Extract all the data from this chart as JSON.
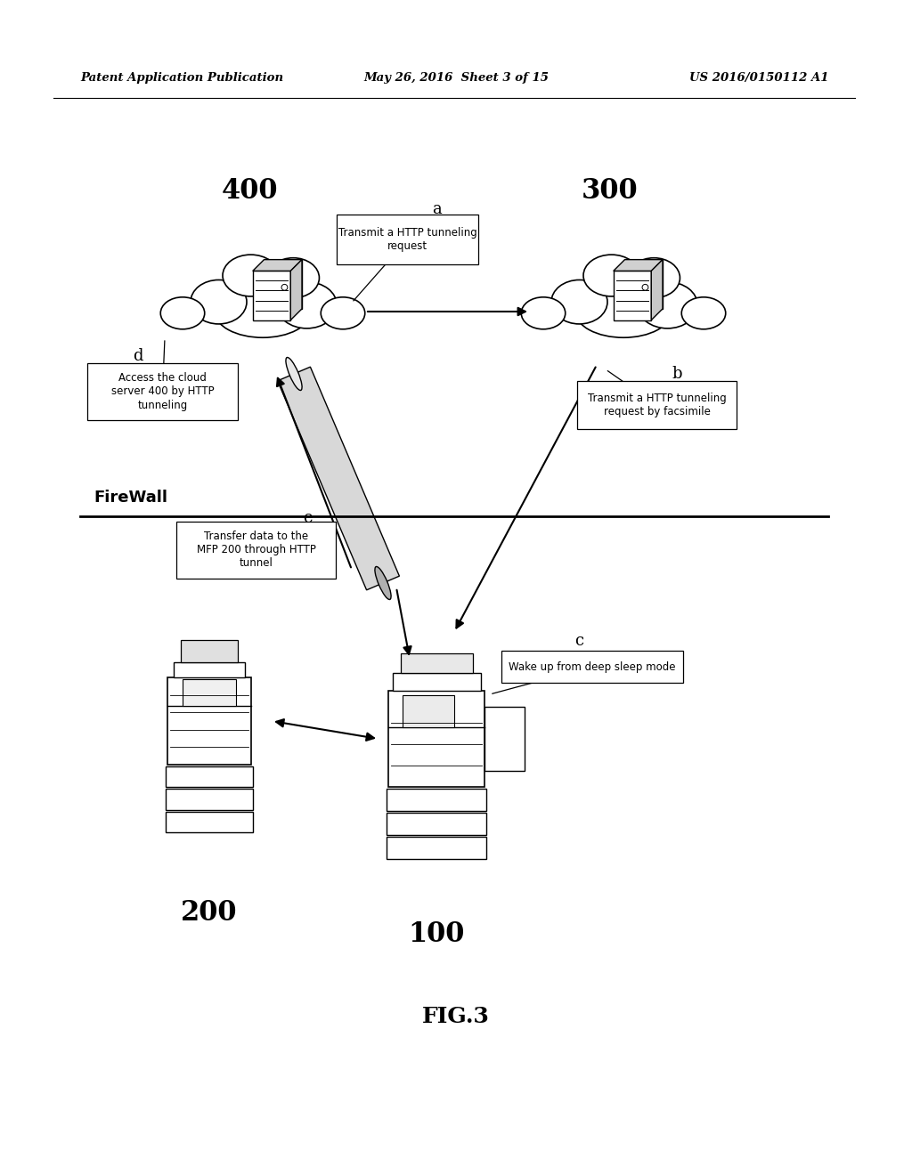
{
  "bg_color": "#ffffff",
  "header_left": "Patent Application Publication",
  "header_mid": "May 26, 2016  Sheet 3 of 15",
  "header_right": "US 2016/0150112 A1",
  "fig_label": "FIG.3",
  "firewall_label": "FireWall",
  "label_400": "400",
  "label_300": "300",
  "label_100": "100",
  "label_200": "200",
  "label_a": "a",
  "label_b": "b",
  "label_c": "c",
  "label_d": "d",
  "label_e": "e",
  "text_a": "Transmit a HTTP tunneling\nrequest",
  "text_b": "Transmit a HTTP tunneling\nrequest by facsimile",
  "text_c": "Wake up from deep sleep mode",
  "text_d": "Access the cloud\nserver 400 by HTTP\ntunneling",
  "text_e": "Transfer data to the\nMFP 200 through HTTP\ntunnel"
}
